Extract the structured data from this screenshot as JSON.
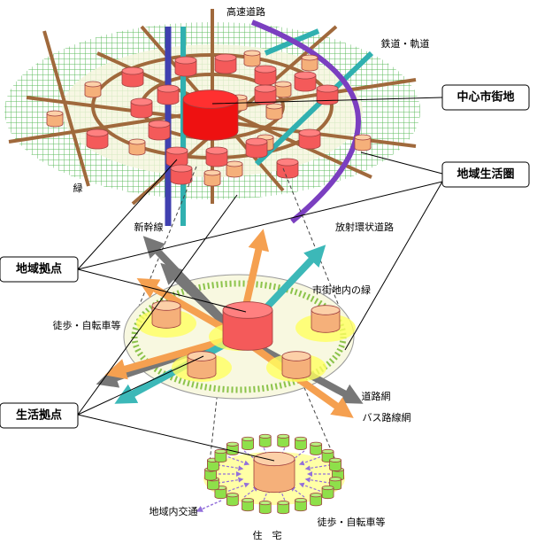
{
  "labels": {
    "expressway": "高速道路",
    "railway": "鉄道・軌道",
    "green": "緑",
    "shinkansen": "新幹線",
    "radial_ring_road": "放射環状道路",
    "urban_green": "市街地内の緑",
    "walk_bike_middle": "徒歩・自転車等",
    "road_network": "道路網",
    "bus_network": "バス路線網",
    "local_transport": "地域内交通",
    "walk_bike_bottom": "徒歩・自転車等",
    "housing": "住　宅"
  },
  "callouts": {
    "city_center": "中心市街地",
    "regional_life_zone": "地域生活圏",
    "regional_hub": "地域拠点",
    "life_hub": "生活拠点"
  }
}
